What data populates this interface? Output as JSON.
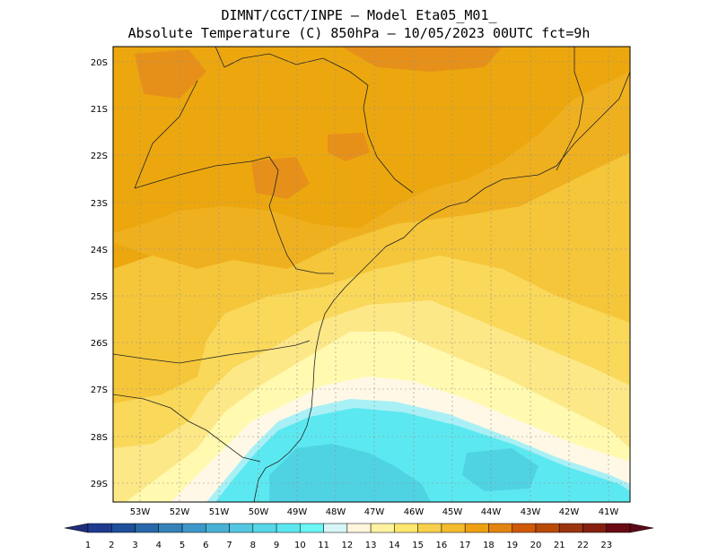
{
  "header": {
    "line1": "DIMNT/CGCT/INPE –  Model Eta05_M01_",
    "line2": "Absolute Temperature (C) 850hPa –  10/05/2023 00UTC fct=9h"
  },
  "axes": {
    "lat_labels": [
      "20S",
      "21S",
      "22S",
      "23S",
      "24S",
      "25S",
      "26S",
      "27S",
      "28S",
      "29S"
    ],
    "lon_labels": [
      "53W",
      "52W",
      "51W",
      "50W",
      "49W",
      "48W",
      "47W",
      "46W",
      "45W",
      "44W",
      "43W",
      "42W",
      "41W"
    ]
  },
  "colorbar": {
    "labels": [
      "1",
      "2",
      "3",
      "4",
      "5",
      "6",
      "7",
      "8",
      "9",
      "10",
      "11",
      "12",
      "13",
      "14",
      "15",
      "16",
      "17",
      "18",
      "19",
      "20",
      "21",
      "22",
      "23"
    ],
    "colors": [
      "#1f3a8f",
      "#1f4e9b",
      "#2867a8",
      "#3482b8",
      "#3c98c8",
      "#49b1d6",
      "#52c6e0",
      "#56d6e8",
      "#5ce7f0",
      "#6cf5f5",
      "#d6f6f8",
      "#fff5dc",
      "#fff3a0",
      "#fde66e",
      "#f7d04a",
      "#f3bc2e",
      "#eea012",
      "#e28510",
      "#cf5a08",
      "#b84a08",
      "#9b3410",
      "#842010",
      "#6a0a14"
    ],
    "low_color": "#1f2d7a",
    "high_color": "#5a0a18"
  },
  "map_colors": {
    "c11": "#fff8e6",
    "c12": "#fffab0",
    "c13": "#fde888",
    "c14": "#f9d85a",
    "c15": "#f5c63a",
    "c16": "#efb020",
    "c17": "#eca70f",
    "c18": "#e6901a",
    "c9": "#5ce8f0",
    "c8": "#4fd3e3",
    "c10": "#a8f0f5"
  }
}
